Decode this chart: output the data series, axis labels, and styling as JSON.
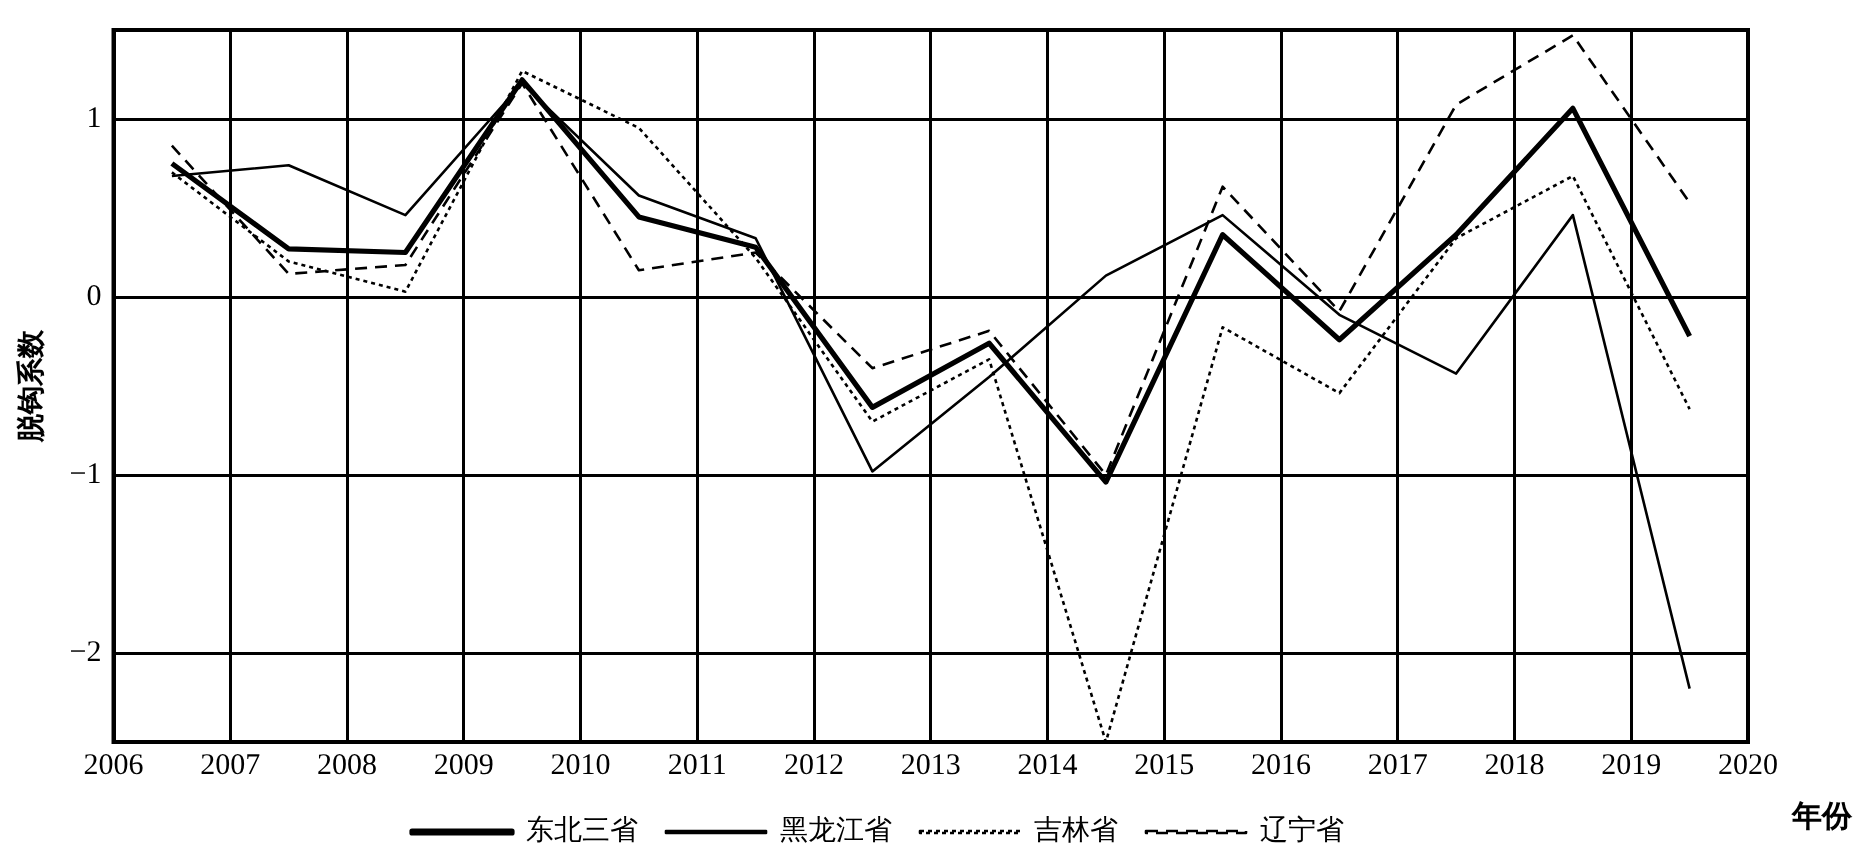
{
  "chart_data": {
    "type": "line",
    "xlabel": "年份",
    "ylabel": "脱钩系数",
    "x": [
      2006.5,
      2007.5,
      2008.5,
      2009.5,
      2010.5,
      2011.5,
      2012.5,
      2013.5,
      2014.5,
      2015.5,
      2016.5,
      2017.5,
      2018.5,
      2019.5
    ],
    "series": [
      {
        "name": "东北三省",
        "color": "#000000",
        "line_style": "solid",
        "values": [
          0.75,
          0.27,
          0.25,
          1.22,
          0.45,
          0.28,
          -0.62,
          -0.26,
          -1.04,
          0.35,
          -0.24,
          0.35,
          1.06,
          -0.22
        ]
      },
      {
        "name": "黑龙江省",
        "color": "#000000",
        "line_style": "solid",
        "values": [
          0.68,
          0.74,
          0.46,
          1.2,
          0.57,
          0.33,
          -0.98,
          -0.45,
          0.12,
          0.46,
          -0.1,
          -0.43,
          0.46,
          -2.2
        ]
      },
      {
        "name": "吉林省",
        "color": "#000000",
        "line_style": "dotted",
        "values": [
          0.7,
          0.2,
          0.03,
          1.27,
          0.95,
          0.22,
          -0.7,
          -0.35,
          -2.5,
          -0.17,
          -0.54,
          0.33,
          0.68,
          -0.63
        ]
      },
      {
        "name": "辽宁省",
        "color": "#000000",
        "line_style": "dashed",
        "values": [
          0.85,
          0.13,
          0.18,
          1.2,
          0.15,
          0.25,
          -0.4,
          -0.19,
          -1.0,
          0.62,
          -0.08,
          1.08,
          1.47,
          0.53
        ]
      }
    ],
    "xlim": [
      2006,
      2020
    ],
    "xticks": [
      2006,
      2007,
      2008,
      2009,
      2010,
      2011,
      2012,
      2013,
      2014,
      2015,
      2016,
      2017,
      2018,
      2019,
      2020
    ],
    "ylim": [
      -2.5,
      1.5
    ],
    "yticks": [
      -2,
      -1,
      0,
      1
    ],
    "grid": true,
    "legend": "bottom",
    "marker": "none"
  }
}
